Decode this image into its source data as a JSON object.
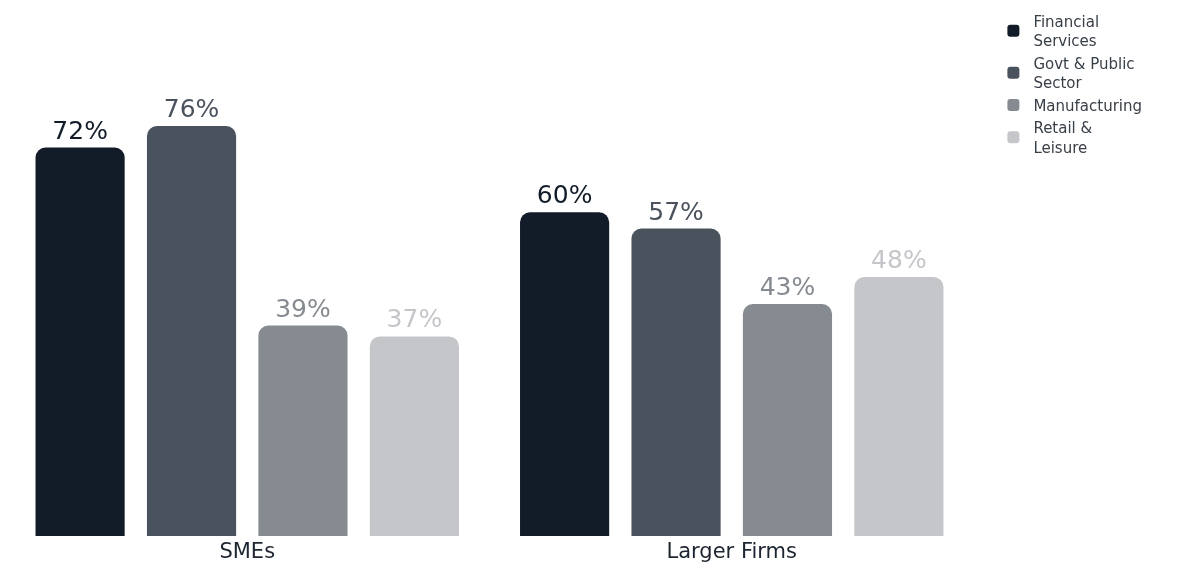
{
  "chart_data": {
    "type": "bar",
    "categories": [
      "SMEs",
      "Larger Firms"
    ],
    "series": [
      {
        "name": "Financial Services",
        "color": "#111c28",
        "values": [
          72,
          60
        ],
        "value_labels": [
          "72%",
          "60%"
        ]
      },
      {
        "name": "Govt & Public Sector",
        "color": "#4a535d",
        "values": [
          76,
          57
        ],
        "value_labels": [
          "76%",
          "57%"
        ]
      },
      {
        "name": "Manufacturing",
        "color": "#868b91",
        "values": [
          39,
          43
        ],
        "value_labels": [
          "39%",
          "43%"
        ]
      },
      {
        "name": "Retail & Leisure",
        "color": "#c4c6c9",
        "values": [
          37,
          48
        ],
        "value_labels": [
          "37%",
          "48%"
        ]
      }
    ],
    "legend": "top right",
    "grid": false
  }
}
